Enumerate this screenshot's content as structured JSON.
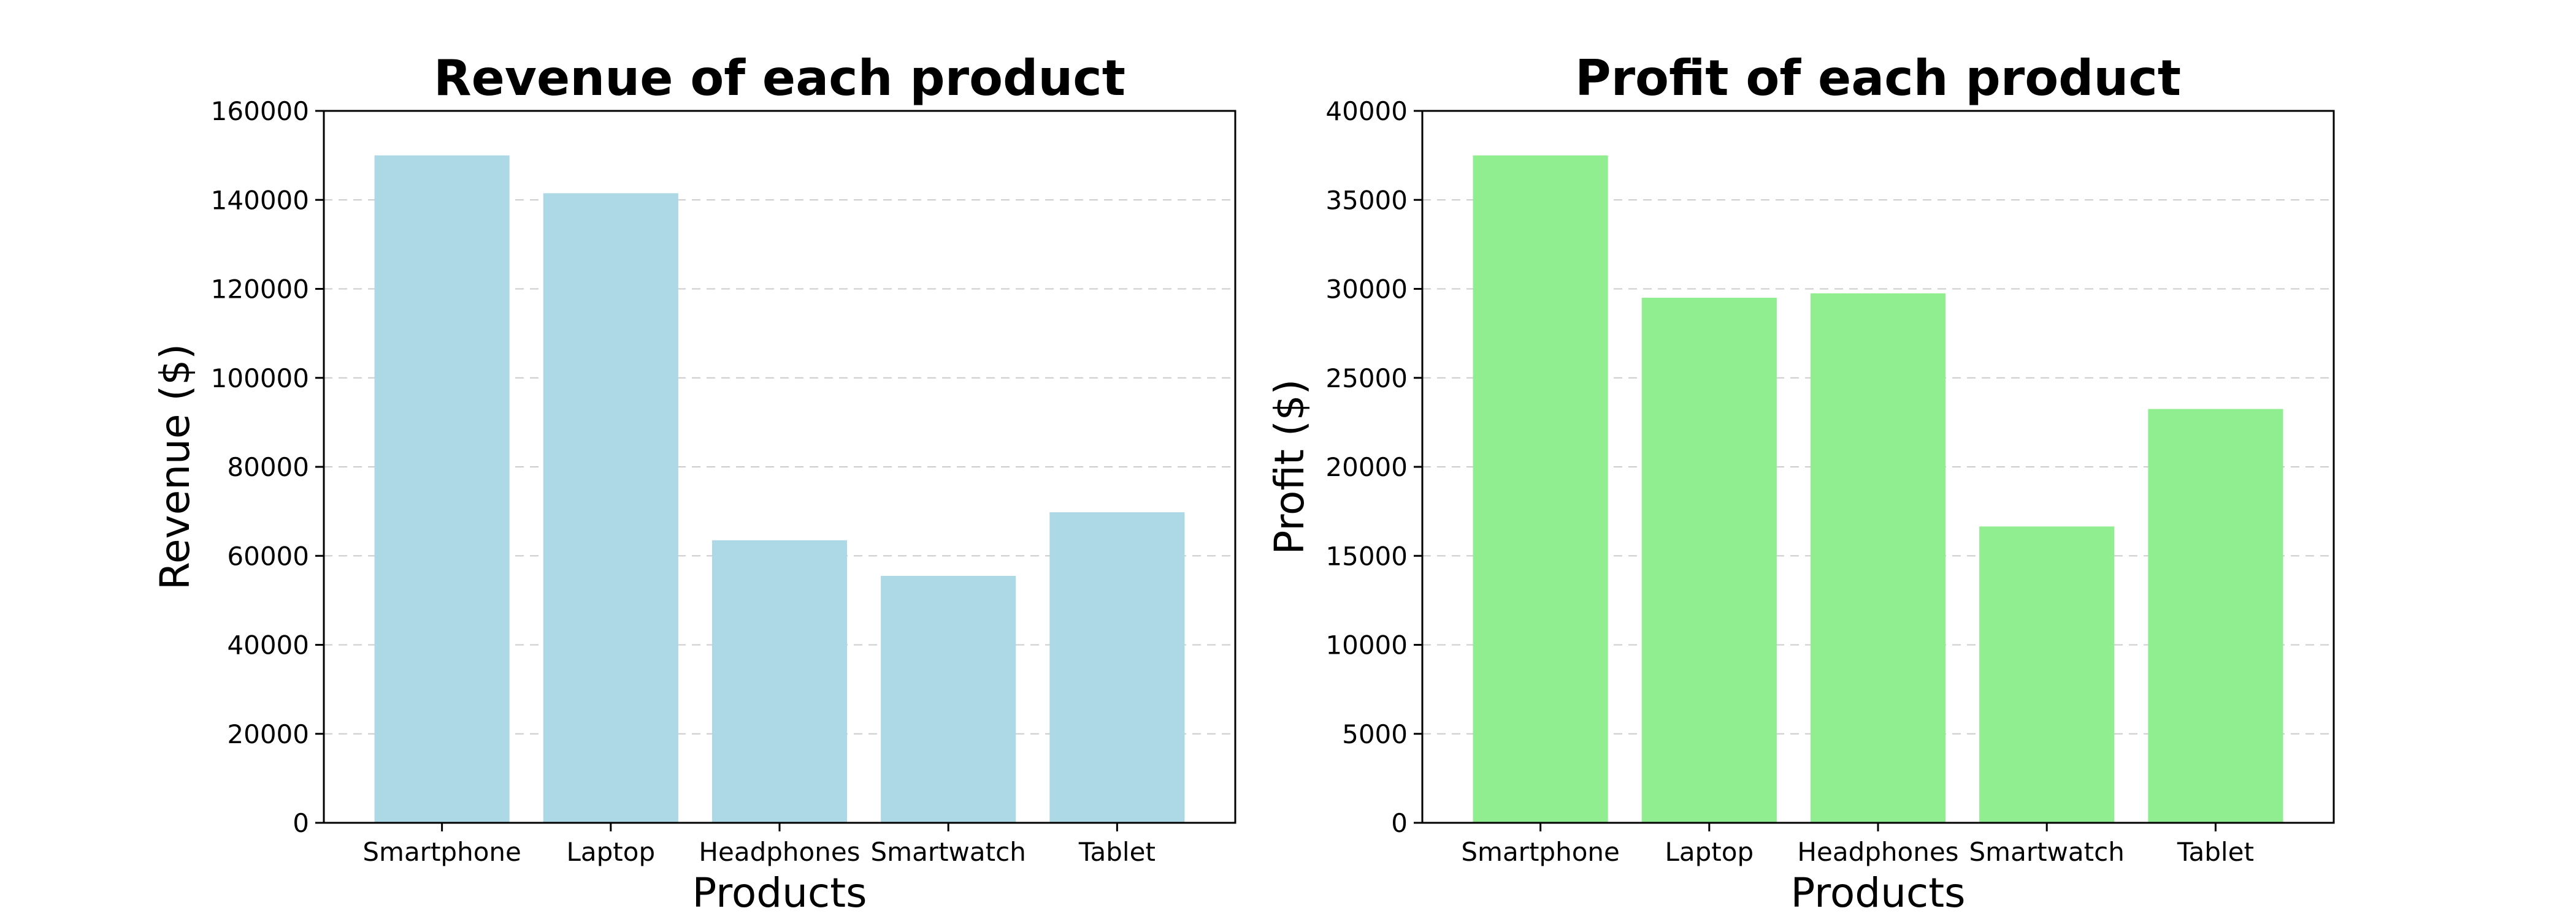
{
  "chart_data": [
    {
      "type": "bar",
      "title": "Revenue of each product",
      "xlabel": "Products",
      "ylabel": "Revenue ($)",
      "categories": [
        "Smartphone",
        "Laptop",
        "Headphones",
        "Smartwatch",
        "Tablet"
      ],
      "values": [
        150000,
        141500,
        63500,
        55500,
        69800
      ],
      "ylim": [
        0,
        160000
      ],
      "yticks": [
        0,
        20000,
        40000,
        60000,
        80000,
        100000,
        120000,
        140000,
        160000
      ],
      "color": "#add8e6",
      "grid": "y-dashed",
      "legend": "none"
    },
    {
      "type": "bar",
      "title": "Profit of each product",
      "xlabel": "Products",
      "ylabel": "Profit ($)",
      "categories": [
        "Smartphone",
        "Laptop",
        "Headphones",
        "Smartwatch",
        "Tablet"
      ],
      "values": [
        37500,
        29500,
        29750,
        16650,
        23250
      ],
      "ylim": [
        0,
        40000
      ],
      "yticks": [
        0,
        5000,
        10000,
        15000,
        20000,
        25000,
        30000,
        35000,
        40000
      ],
      "color": "#90ee90",
      "grid": "y-dashed",
      "legend": "none"
    }
  ]
}
